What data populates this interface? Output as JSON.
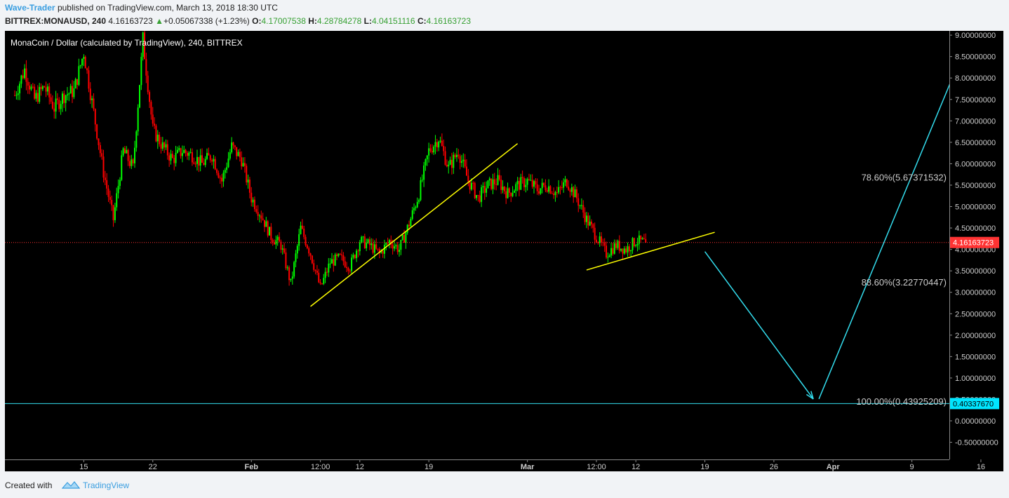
{
  "header": {
    "author": "Wave-Trader",
    "published_text": "published on TradingView.com, March 13, 2018 18:30 UTC",
    "symbol": "BITTREX:MONAUSD, 240",
    "price": "4.16163723",
    "up_arrow": "▲",
    "change": "+0.05067338 (+1.23%)",
    "o_label": "O:",
    "o_value": "4.17007538",
    "h_label": "H:",
    "h_value": "4.28784278",
    "l_label": "L:",
    "l_value": "4.04151116",
    "c_label": "C:",
    "c_value": "4.16163723"
  },
  "footer": {
    "created_with": "Created with",
    "brand": "TradingView"
  },
  "colors": {
    "up": "#00ff00",
    "down": "#ff0000",
    "trendline": "#ffff00",
    "projection": "#33ddee",
    "price_line": "#ff3333",
    "price_tag_bg": "#ff3333",
    "level_tag_bg": "#00e5ff",
    "background": "#000000",
    "axis_text": "#cccccc"
  },
  "chart_data": {
    "type": "candlestick",
    "title": "MonaCoin / Dollar (calculated by TradingView), 240, BITTREX",
    "y_ticks": [
      "9.00000000",
      "8.50000000",
      "8.00000000",
      "7.50000000",
      "7.00000000",
      "6.50000000",
      "6.00000000",
      "5.50000000",
      "5.00000000",
      "4.50000000",
      "4.00000000",
      "3.50000000",
      "3.00000000",
      "2.50000000",
      "2.00000000",
      "1.50000000",
      "1.00000000",
      "0.50000000",
      "0.00000000",
      "-0.50000000"
    ],
    "ylim": [
      -0.9,
      9.1
    ],
    "x_ticks": [
      "15",
      "22",
      "Feb",
      "12:00",
      "12",
      "19",
      "Mar",
      "12:00",
      "12",
      "19",
      "26",
      "Apr",
      "9",
      "16"
    ],
    "x_tick_dates": [
      "2018-01-15",
      "2018-01-22",
      "2018-02-01",
      "2018-02-08",
      "2018-02-12",
      "2018-02-19",
      "2018-03-01",
      "2018-03-08",
      "2018-03-12",
      "2018-03-19",
      "2018-03-26",
      "2018-04-01",
      "2018-04-09",
      "2018-04-16"
    ],
    "last_price": {
      "value": 4.16163723,
      "label": "4.16163723"
    },
    "level_line": {
      "value": 0.4033767,
      "label": "0.40337670"
    },
    "fib_labels": [
      {
        "text": "78.60%(5.67371532)",
        "value": 5.6737
      },
      {
        "text": "88.60%(3.22770447)",
        "value": 3.2277
      },
      {
        "text": "100.00%(0.43925209)",
        "value": 0.4393
      }
    ],
    "trendlines": [
      {
        "from": [
          "2018-02-07",
          2.67
        ],
        "to": [
          "2018-02-28",
          6.47
        ]
      },
      {
        "from": [
          "2018-03-07",
          3.52
        ],
        "to": [
          "2018-03-20",
          4.4
        ]
      }
    ],
    "projection": [
      [
        "2018-03-19",
        3.95
      ],
      [
        "2018-03-30",
        0.51
      ],
      [
        "2018-03-30",
        0.51
      ],
      [
        "2018-04-15",
        9.05
      ]
    ],
    "price_path": [
      [
        "2018-01-08",
        7.6
      ],
      [
        "2018-01-09",
        8.2
      ],
      [
        "2018-01-10",
        7.5
      ],
      [
        "2018-01-11",
        7.8
      ],
      [
        "2018-01-12",
        7.3
      ],
      [
        "2018-01-13",
        7.6
      ],
      [
        "2018-01-14",
        7.7
      ],
      [
        "2018-01-15",
        8.6
      ],
      [
        "2018-01-16",
        7.2
      ],
      [
        "2018-01-17",
        5.8
      ],
      [
        "2018-01-18",
        4.7
      ],
      [
        "2018-01-19",
        6.3
      ],
      [
        "2018-01-20",
        5.9
      ],
      [
        "2018-01-21",
        8.9
      ],
      [
        "2018-01-22",
        6.8
      ],
      [
        "2018-01-23",
        6.4
      ],
      [
        "2018-01-24",
        6.1
      ],
      [
        "2018-01-25",
        6.3
      ],
      [
        "2018-01-26",
        6.2
      ],
      [
        "2018-01-27",
        6.0
      ],
      [
        "2018-01-28",
        6.2
      ],
      [
        "2018-01-29",
        5.6
      ],
      [
        "2018-01-30",
        6.4
      ],
      [
        "2018-01-31",
        6.1
      ],
      [
        "2018-02-01",
        5.2
      ],
      [
        "2018-02-02",
        4.8
      ],
      [
        "2018-02-03",
        4.3
      ],
      [
        "2018-02-04",
        4.1
      ],
      [
        "2018-02-05",
        3.2
      ],
      [
        "2018-02-06",
        4.5
      ],
      [
        "2018-02-07",
        3.9
      ],
      [
        "2018-02-08",
        3.1
      ],
      [
        "2018-02-09",
        3.7
      ],
      [
        "2018-02-10",
        3.8
      ],
      [
        "2018-02-11",
        3.6
      ],
      [
        "2018-02-12",
        4.2
      ],
      [
        "2018-02-13",
        4.1
      ],
      [
        "2018-02-14",
        3.9
      ],
      [
        "2018-02-15",
        4.2
      ],
      [
        "2018-02-16",
        4.0
      ],
      [
        "2018-02-17",
        4.6
      ],
      [
        "2018-02-18",
        5.3
      ],
      [
        "2018-02-19",
        6.3
      ],
      [
        "2018-02-20",
        6.6
      ],
      [
        "2018-02-21",
        5.9
      ],
      [
        "2018-02-22",
        6.3
      ],
      [
        "2018-02-23",
        5.6
      ],
      [
        "2018-02-24",
        5.2
      ],
      [
        "2018-02-25",
        5.5
      ],
      [
        "2018-02-26",
        5.6
      ],
      [
        "2018-02-27",
        5.3
      ],
      [
        "2018-02-28",
        5.5
      ],
      [
        "2018-03-01",
        5.6
      ],
      [
        "2018-03-02",
        5.4
      ],
      [
        "2018-03-03",
        5.5
      ],
      [
        "2018-03-04",
        5.3
      ],
      [
        "2018-03-05",
        5.6
      ],
      [
        "2018-03-06",
        5.2
      ],
      [
        "2018-03-07",
        4.7
      ],
      [
        "2018-03-08",
        4.3
      ],
      [
        "2018-03-09",
        3.9
      ],
      [
        "2018-03-10",
        4.1
      ],
      [
        "2018-03-11",
        4.0
      ],
      [
        "2018-03-12",
        4.2
      ],
      [
        "2018-03-13",
        4.16
      ]
    ]
  }
}
